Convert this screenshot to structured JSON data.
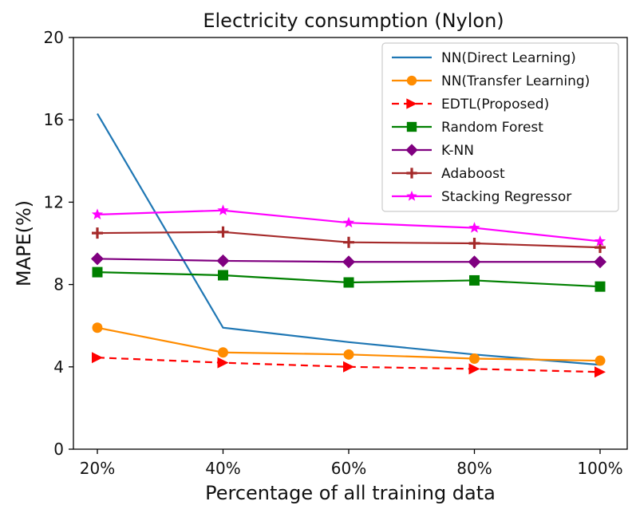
{
  "chart_data": {
    "type": "line",
    "title": "Electricity consumption (Nylon)",
    "xlabel": "Percentage of all training data",
    "ylabel": "MAPE(%)",
    "categories": [
      "20%",
      "40%",
      "60%",
      "80%",
      "100%"
    ],
    "ylim": [
      0,
      20
    ],
    "yticks": [
      0,
      4,
      8,
      12,
      16,
      20
    ],
    "legend_position": "top-right",
    "series": [
      {
        "name": "NN(Direct Learning)",
        "values": [
          16.3,
          5.9,
          5.2,
          4.6,
          4.1
        ],
        "color": "#1f77b4",
        "marker": "none",
        "dashed": false
      },
      {
        "name": "NN(Transfer Learning)",
        "values": [
          5.9,
          4.7,
          4.6,
          4.4,
          4.3
        ],
        "color": "#ff8c00",
        "marker": "circle",
        "dashed": false
      },
      {
        "name": "EDTL(Proposed)",
        "values": [
          4.45,
          4.2,
          4.0,
          3.9,
          3.75
        ],
        "color": "#ff0000",
        "marker": "triangle-right",
        "dashed": true
      },
      {
        "name": "Random Forest",
        "values": [
          8.6,
          8.45,
          8.1,
          8.2,
          7.9
        ],
        "color": "#008000",
        "marker": "square",
        "dashed": false
      },
      {
        "name": "K-NN",
        "values": [
          9.25,
          9.15,
          9.1,
          9.1,
          9.1
        ],
        "color": "#800080",
        "marker": "diamond",
        "dashed": false
      },
      {
        "name": "Adaboost",
        "values": [
          10.5,
          10.55,
          10.05,
          10.0,
          9.8
        ],
        "color": "#a52a2a",
        "marker": "plus",
        "dashed": false
      },
      {
        "name": "Stacking Regressor",
        "values": [
          11.4,
          11.6,
          11.0,
          10.75,
          10.1
        ],
        "color": "#ff00ff",
        "marker": "star",
        "dashed": false
      }
    ]
  }
}
